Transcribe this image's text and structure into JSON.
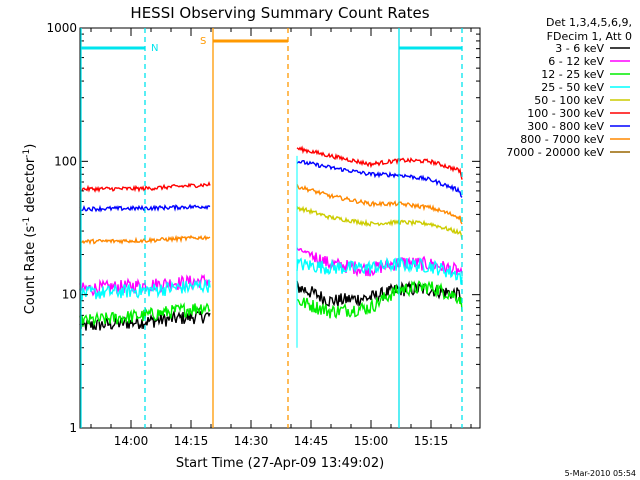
{
  "chart_data": {
    "type": "line",
    "title": "HESSI Observing Summary Count Rates",
    "xlabel": "Start Time (27-Apr-09 13:49:02)",
    "ylabel_main": "Count Rate (s",
    "ylabel_sup1": "-1",
    "ylabel_mid": " detector",
    "ylabel_sup2": "-1",
    "ylabel_end": ")",
    "yscale": "log",
    "ylim": [
      1,
      1000
    ],
    "x_tick_labels": [
      "14:00",
      "14:15",
      "14:30",
      "14:45",
      "15:00",
      "15:15"
    ],
    "y_tick_labels": [
      "1",
      "10",
      "100",
      "1000"
    ],
    "legend_header": [
      "Det 1,3,4,5,6,9,",
      "FDecim 1, Att 0"
    ],
    "legend_position": "right, outside plot",
    "timestamp": "5-Mar-2010 05:54",
    "markers": [
      {
        "label": "N",
        "color": "#00e5ee"
      },
      {
        "label": "S",
        "color": "#ff9900"
      }
    ],
    "series": [
      {
        "name": "3 - 6 keV",
        "color": "#000000",
        "seg1": [
          5.8,
          6.3,
          7.0
        ],
        "seg2": [
          11.5,
          9.0,
          9.5,
          11.0,
          11.0,
          10.0,
          8.8
        ]
      },
      {
        "name": "6 - 12 keV",
        "color": "#ff00ff",
        "seg1": [
          11.0,
          11.8,
          12.8
        ],
        "seg2": [
          22.0,
          17.0,
          15.5,
          17.5,
          17.0,
          15.0,
          13.0
        ]
      },
      {
        "name": "12 - 25 keV",
        "color": "#00ee00",
        "seg1": [
          6.3,
          7.0,
          8.2
        ],
        "seg2": [
          9.0,
          7.5,
          8.0,
          11.0,
          11.5,
          9.5,
          8.0
        ]
      },
      {
        "name": "25 - 50 keV",
        "color": "#00ffff",
        "seg1": [
          10.2,
          10.8,
          11.8
        ],
        "seg2": [
          17.0,
          16.0,
          16.0,
          17.0,
          16.5,
          14.0,
          12.5
        ]
      },
      {
        "name": "50 - 100 keV",
        "color": "#cccc00",
        "seg1": [],
        "seg2": [
          45.0,
          38.0,
          34.0,
          35.0,
          34.0,
          29.0,
          27.0
        ]
      },
      {
        "name": "100 - 300 keV",
        "color": "#ff0000",
        "seg1": [
          62.0,
          62.5,
          67.0
        ],
        "seg2": [
          125.0,
          110.0,
          95.0,
          102.0,
          100.0,
          85.0,
          73.0
        ]
      },
      {
        "name": "300 - 800 keV",
        "color": "#0000ff",
        "seg1": [
          44.0,
          44.5,
          46.0
        ],
        "seg2": [
          100.0,
          90.0,
          80.0,
          79.0,
          73.0,
          60.0,
          53.0
        ]
      },
      {
        "name": "800 - 7000 keV",
        "color": "#ff8800",
        "seg1": [
          25.0,
          25.5,
          27.0
        ],
        "seg2": [
          65.0,
          55.0,
          48.0,
          48.0,
          45.0,
          38.0,
          34.0
        ]
      },
      {
        "name": "7000 - 20000 keV",
        "color": "#996600",
        "seg1": [],
        "seg2": []
      }
    ]
  }
}
